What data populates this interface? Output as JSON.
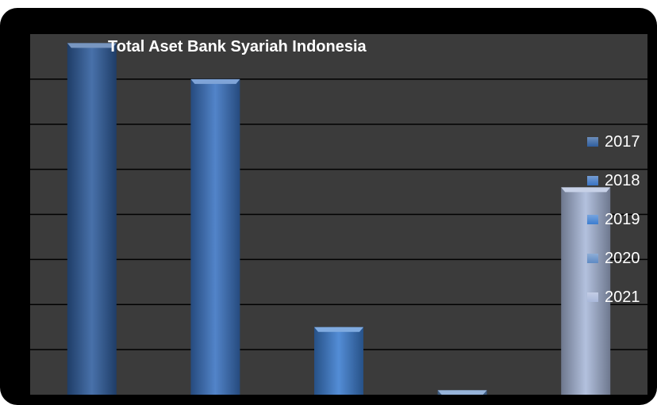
{
  "chart_data": {
    "type": "bar",
    "title": "Total Aset Bank Syariah Indonesia",
    "xlabel": "",
    "ylabel": "",
    "grid": true,
    "legend_position": "right",
    "ylim": [
      0,
      8
    ],
    "series": [
      {
        "name": "2017",
        "values": [
          7.8
        ],
        "color": "#2F5E9E"
      },
      {
        "name": "2018",
        "values": [
          7.0
        ],
        "color": "#3A73C2"
      },
      {
        "name": "2019",
        "values": [
          1.5
        ],
        "color": "#3C7DD0"
      },
      {
        "name": "2020",
        "values": [
          0.1
        ],
        "color": "#5E8AC4"
      },
      {
        "name": "2021",
        "values": [
          4.6
        ],
        "color": "#A9B8DA"
      }
    ],
    "background": "#3b3b3b",
    "frame": "#000000"
  }
}
